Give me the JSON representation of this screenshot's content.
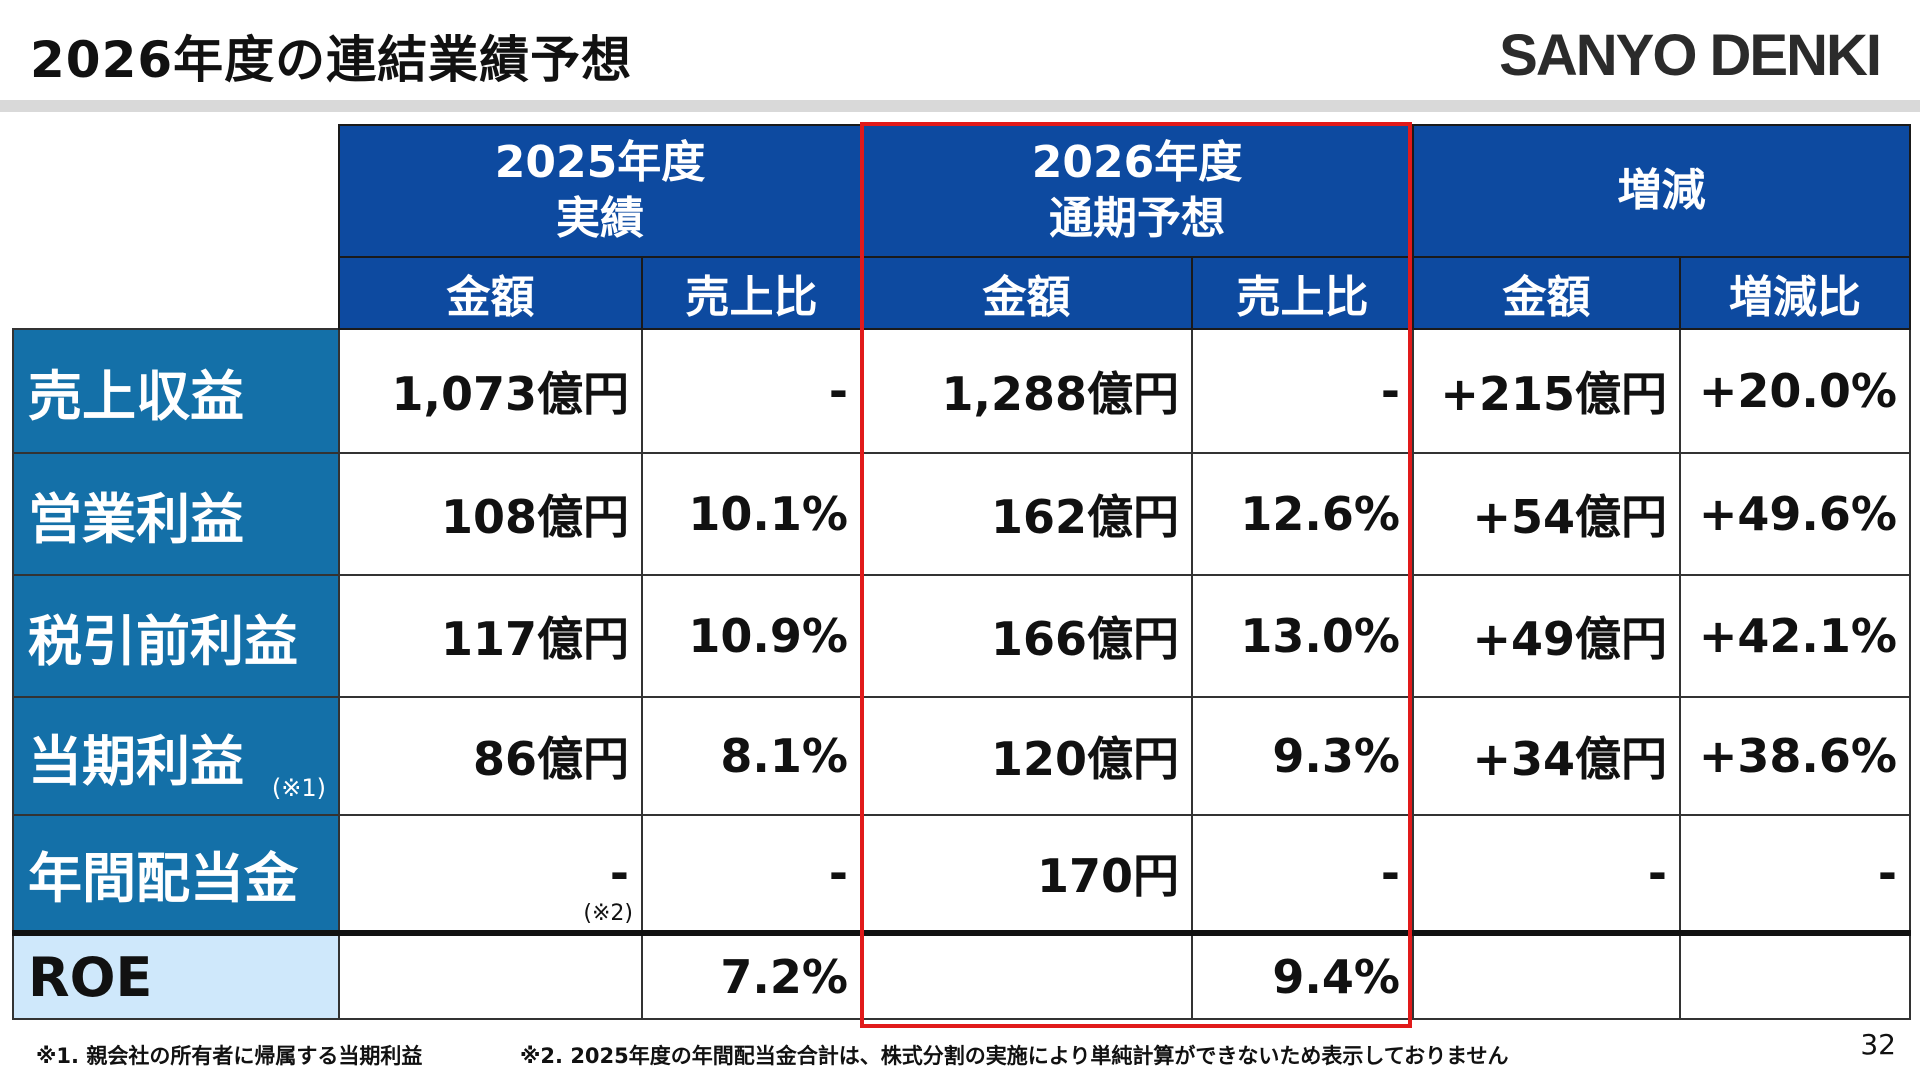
{
  "header": {
    "title": "2026年度の連結業績予想",
    "logo": "SANYO DENKI"
  },
  "table": {
    "groups": [
      {
        "line1": "2025年度",
        "line2": "実績"
      },
      {
        "line1": "2026年度",
        "line2": "通期予想"
      },
      {
        "line1": "増減",
        "line2": ""
      }
    ],
    "subheaders": [
      "金額",
      "売上比",
      "金額",
      "売上比",
      "金額",
      "増減比"
    ],
    "rows": [
      {
        "label": "売上収益",
        "note": "",
        "cells": [
          "1,073億円",
          "-",
          "1,288億円",
          "-",
          "+215億円",
          "+20.0%"
        ],
        "cell_notes": [
          "",
          "",
          "",
          "",
          "",
          ""
        ]
      },
      {
        "label": "営業利益",
        "note": "",
        "cells": [
          "108億円",
          "10.1%",
          "162億円",
          "12.6%",
          "+54億円",
          "+49.6%"
        ],
        "cell_notes": [
          "",
          "",
          "",
          "",
          "",
          ""
        ]
      },
      {
        "label": "税引前利益",
        "note": "",
        "cells": [
          "117億円",
          "10.9%",
          "166億円",
          "13.0%",
          "+49億円",
          "+42.1%"
        ],
        "cell_notes": [
          "",
          "",
          "",
          "",
          "",
          ""
        ]
      },
      {
        "label": "当期利益",
        "note": "(※1)",
        "cells": [
          "86億円",
          "8.1%",
          "120億円",
          "9.3%",
          "+34億円",
          "+38.6%"
        ],
        "cell_notes": [
          "",
          "",
          "",
          "",
          "",
          ""
        ]
      },
      {
        "label": "年間配当金",
        "note": "",
        "cells": [
          "-",
          "-",
          "170円",
          "-",
          "-",
          "-"
        ],
        "cell_notes": [
          "(※2)",
          "",
          "",
          "",
          "",
          ""
        ]
      },
      {
        "label": "ROE",
        "note": "",
        "cells": [
          "",
          "7.2%",
          "",
          "9.4%",
          "",
          ""
        ],
        "cell_notes": [
          "",
          "",
          "",
          "",
          "",
          ""
        ]
      }
    ]
  },
  "footnotes": {
    "note1": "※1. 親会社の所有者に帰属する当期利益",
    "note2": "※2. 2025年度の年間配当金合計は、株式分割の実施により単純計算ができないため表示しておりません"
  },
  "page_number": "32"
}
